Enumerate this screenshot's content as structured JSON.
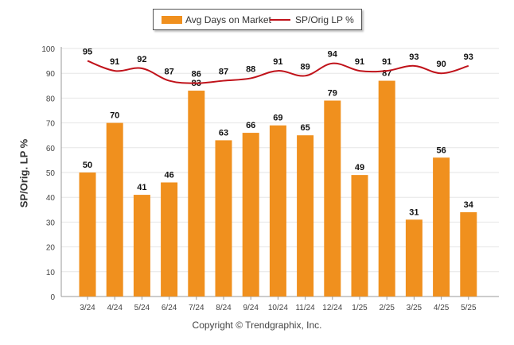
{
  "chart_data": {
    "type": "bar",
    "title": "",
    "ylabel": "SP/Orig. LP %",
    "ylim": [
      0,
      100
    ],
    "yticks": [
      0,
      10,
      20,
      30,
      40,
      50,
      60,
      70,
      80,
      90,
      100
    ],
    "grid": true,
    "legend_position": "top-center",
    "categories": [
      "3/24",
      "4/24",
      "5/24",
      "6/24",
      "7/24",
      "8/24",
      "9/24",
      "10/24",
      "11/24",
      "12/24",
      "1/25",
      "2/25",
      "3/25",
      "4/25",
      "5/25"
    ],
    "series": [
      {
        "name": "Avg Days on Market",
        "type": "bar",
        "color": "#f0901e",
        "values": [
          50,
          70,
          41,
          46,
          83,
          63,
          66,
          69,
          65,
          79,
          49,
          87,
          31,
          56,
          34
        ]
      },
      {
        "name": "SP/Orig LP %",
        "type": "line",
        "color": "#c0121a",
        "values": [
          95,
          91,
          92,
          87,
          86,
          87,
          88,
          91,
          89,
          94,
          91,
          91,
          93,
          90,
          93
        ]
      }
    ]
  },
  "footer": {
    "copyright": "Copyright © Trendgraphix, Inc."
  }
}
